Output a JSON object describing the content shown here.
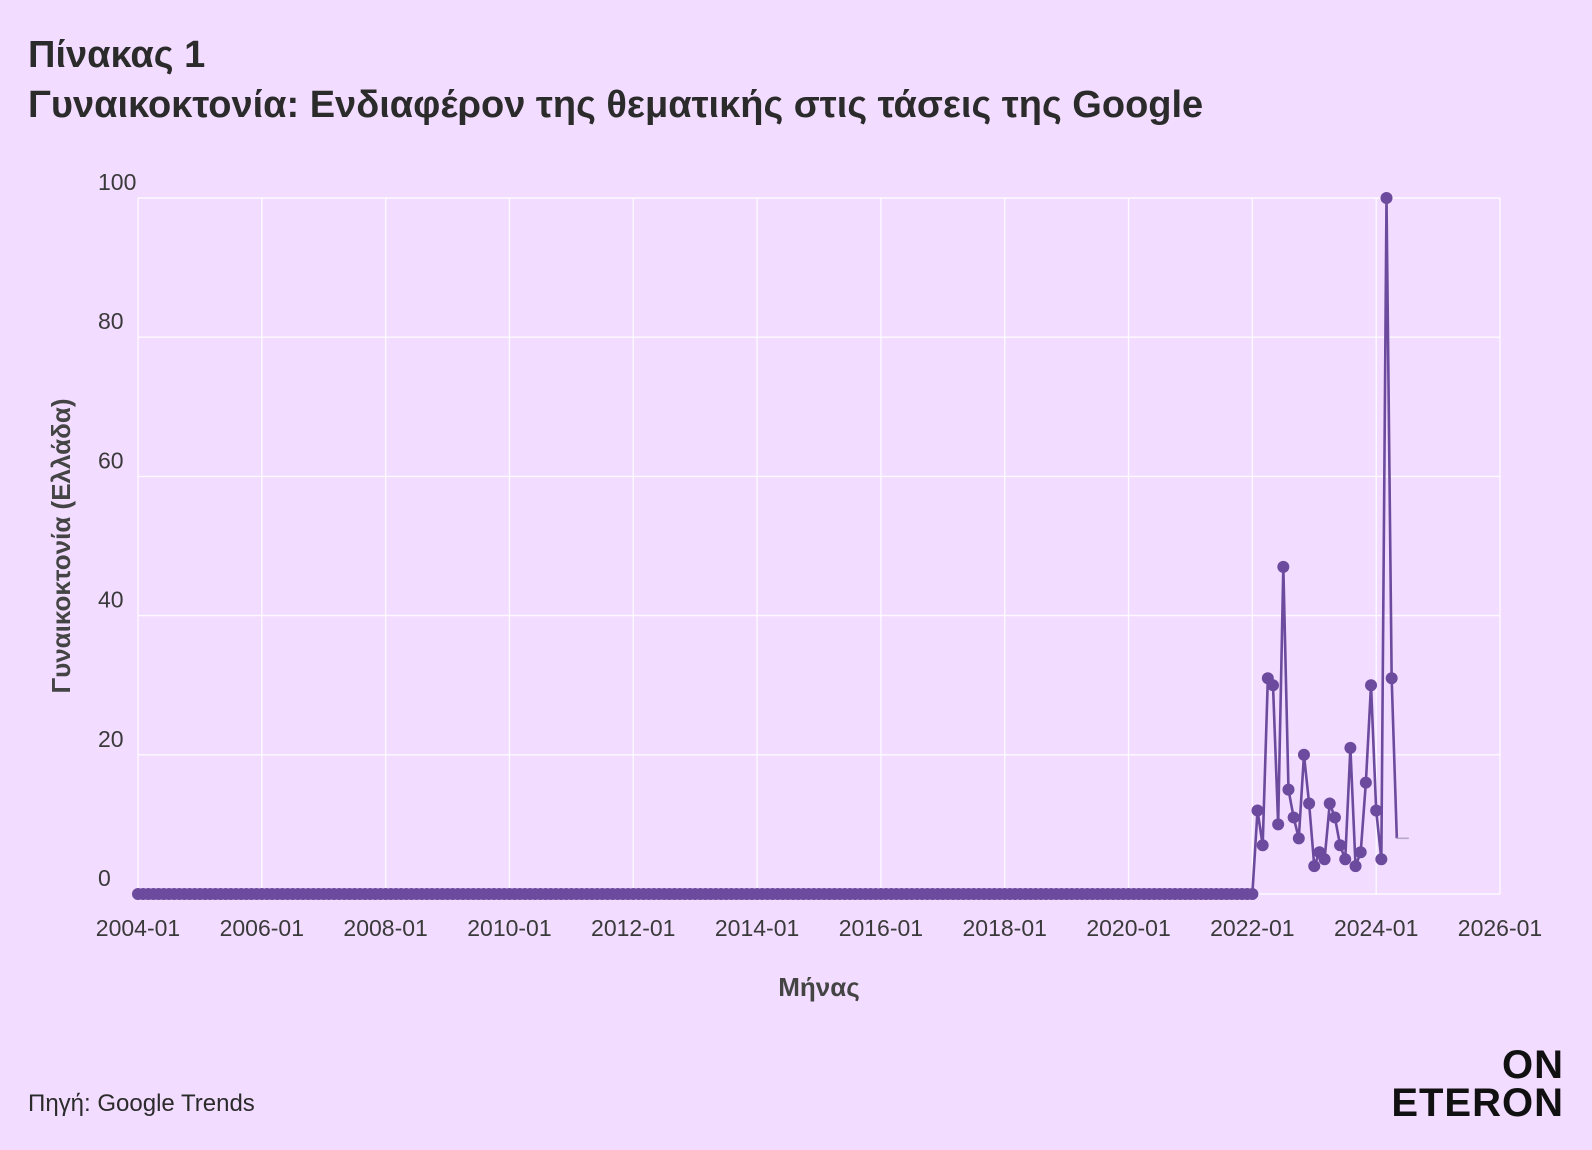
{
  "title": {
    "line1": "Πίνακας 1",
    "line2": "Γυναικοκτονία: Ενδιαφέρον της θεματικής στις τάσεις της Google"
  },
  "source": "Πηγή: Google Trends",
  "logo": {
    "line1": "ON",
    "line2": "ETERON"
  },
  "chart_data": {
    "type": "line",
    "title": "Γυναικοκτονία: Ενδιαφέρον της θεματικής στις τάσεις της Google",
    "xlabel": "Μήνας",
    "ylabel": "Γυναικοκτονία (Ελλάδα)",
    "ylim": [
      0,
      100
    ],
    "xlim": [
      "2004-01",
      "2026-01"
    ],
    "yticks": [
      0,
      20,
      40,
      60,
      80,
      100
    ],
    "xticks": [
      "2004-01",
      "2006-01",
      "2008-01",
      "2010-01",
      "2012-01",
      "2014-01",
      "2016-01",
      "2018-01",
      "2020-01",
      "2022-01",
      "2024-01",
      "2026-01"
    ],
    "grid": true,
    "legend": "none",
    "colors": {
      "series": "#6c4a9e",
      "grid": "#ffffff",
      "background": "#f2dcff"
    },
    "zero_range": {
      "from": "2004-01",
      "to": "2022-01",
      "value": 0
    },
    "series": [
      {
        "x": [
          "2022-02",
          "2022-03",
          "2022-04",
          "2022-05",
          "2022-06",
          "2022-07",
          "2022-08",
          "2022-09",
          "2022-10",
          "2022-11",
          "2022-12",
          "2023-01",
          "2023-02",
          "2023-03",
          "2023-04",
          "2023-05",
          "2023-06",
          "2023-07",
          "2023-08",
          "2023-09",
          "2023-10",
          "2023-11",
          "2023-12",
          "2024-01",
          "2024-02",
          "2024-03",
          "2024-04",
          "2024-05"
        ],
        "values": [
          12,
          7,
          31,
          30,
          10,
          47,
          15,
          11,
          8,
          20,
          13,
          4,
          6,
          5,
          13,
          11,
          7,
          5,
          21,
          4,
          6,
          16,
          30,
          12,
          5,
          100,
          31,
          8
        ]
      }
    ]
  }
}
